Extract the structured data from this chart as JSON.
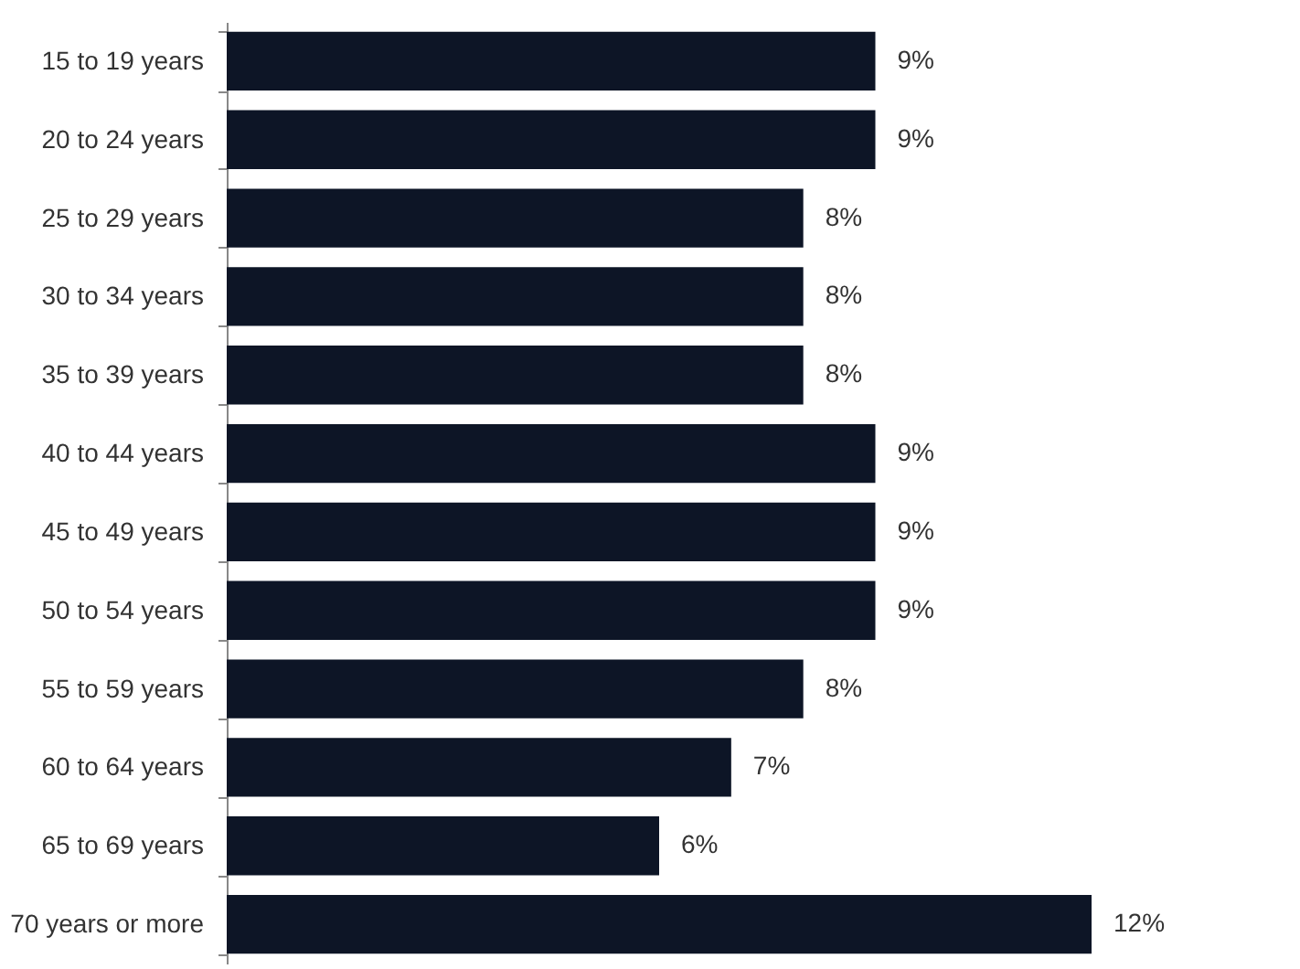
{
  "chart_data": {
    "type": "bar",
    "orientation": "horizontal",
    "categories": [
      "15 to 19 years",
      "20 to 24 years",
      "25 to 29 years",
      "30 to 34 years",
      "35 to 39 years",
      "40 to 44 years",
      "45 to 49 years",
      "50 to 54 years",
      "55 to 59 years",
      "60 to 64 years",
      "65 to 69 years",
      "70 years or more"
    ],
    "values": [
      9,
      9,
      8,
      8,
      8,
      9,
      9,
      9,
      8,
      7,
      6,
      12
    ],
    "value_labels": [
      "9%",
      "9%",
      "8%",
      "8%",
      "8%",
      "9%",
      "9%",
      "9%",
      "8%",
      "7%",
      "6%",
      "12%"
    ],
    "color": "#0d1526"
  }
}
